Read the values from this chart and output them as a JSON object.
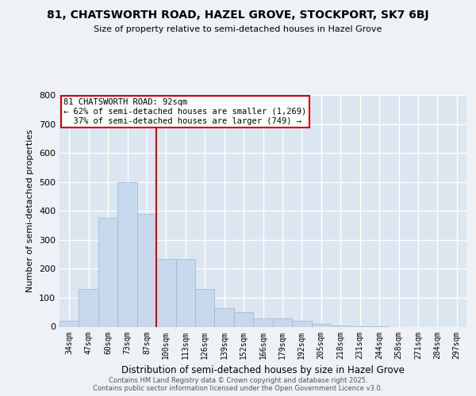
{
  "title": "81, CHATSWORTH ROAD, HAZEL GROVE, STOCKPORT, SK7 6BJ",
  "subtitle": "Size of property relative to semi-detached houses in Hazel Grove",
  "xlabel": "Distribution of semi-detached houses by size in Hazel Grove",
  "ylabel": "Number of semi-detached properties",
  "categories": [
    "34sqm",
    "47sqm",
    "60sqm",
    "73sqm",
    "87sqm",
    "100sqm",
    "113sqm",
    "126sqm",
    "139sqm",
    "152sqm",
    "166sqm",
    "179sqm",
    "192sqm",
    "205sqm",
    "218sqm",
    "231sqm",
    "244sqm",
    "258sqm",
    "271sqm",
    "284sqm",
    "297sqm"
  ],
  "values": [
    20,
    130,
    375,
    500,
    390,
    235,
    235,
    130,
    65,
    50,
    30,
    30,
    20,
    10,
    5,
    2,
    2,
    0,
    0,
    0,
    0
  ],
  "bar_color": "#c8d8ec",
  "bar_edge_color": "#9ab5d0",
  "subject_line_color": "#cc0000",
  "annotation_box_color": "#cc0000",
  "annotation_bg": "#ffffff",
  "background_color": "#eef2f7",
  "plot_bg_color": "#dce6f0",
  "grid_color": "#ffffff",
  "footer_line1": "Contains HM Land Registry data © Crown copyright and database right 2025.",
  "footer_line2": "Contains public sector information licensed under the Open Government Licence v3.0.",
  "ylim": [
    0,
    800
  ],
  "yticks": [
    0,
    100,
    200,
    300,
    400,
    500,
    600,
    700,
    800
  ],
  "pct_smaller": "62%",
  "n_smaller": "1,269",
  "pct_larger": "37%",
  "n_larger": "749"
}
